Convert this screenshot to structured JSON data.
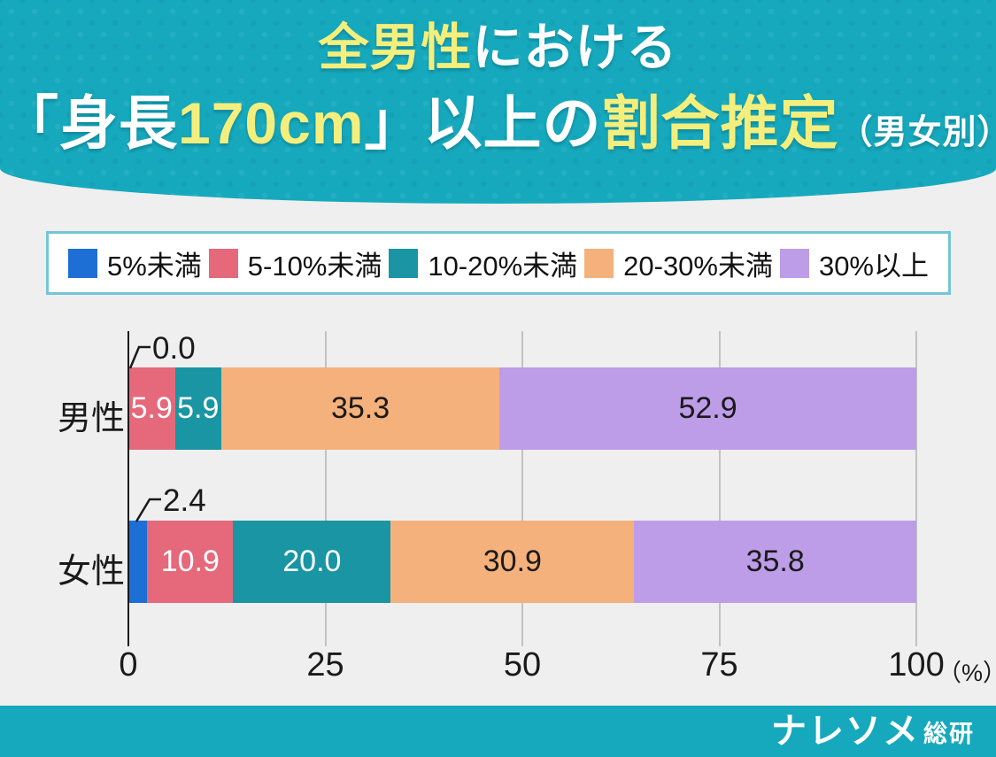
{
  "header": {
    "title_full": "全男性における「身長170cm」以上の割合推定（男女別）",
    "line1_segments": [
      {
        "text": "全男性",
        "color": "yellow"
      },
      {
        "text": "における",
        "color": "white"
      }
    ],
    "line2_segments": [
      {
        "text": "「身長",
        "color": "white"
      },
      {
        "text": "170cm",
        "color": "yellow"
      },
      {
        "text": "」以上の",
        "color": "white"
      },
      {
        "text": "割合推定",
        "color": "yellow"
      },
      {
        "text": "（男女別）",
        "color": "white",
        "small": true
      }
    ],
    "background_color": "#16A9BD",
    "accent_text_color": "#F4EF7C"
  },
  "chart_data": {
    "type": "bar",
    "orientation": "horizontal",
    "stacked": true,
    "categories": [
      "男性",
      "女性"
    ],
    "series": [
      {
        "name": "5%未満",
        "color": "#1D6FD6",
        "label_style": "white",
        "values": [
          0.0,
          2.4
        ]
      },
      {
        "name": "5-10%未満",
        "color": "#E5697B",
        "label_style": "white",
        "values": [
          5.9,
          10.9
        ]
      },
      {
        "name": "10-20%未満",
        "color": "#1995A3",
        "label_style": "white",
        "values": [
          5.9,
          20.0
        ]
      },
      {
        "name": "20-30%未満",
        "color": "#F5B17B",
        "label_style": "dark",
        "values": [
          35.3,
          30.9
        ]
      },
      {
        "name": "30%以上",
        "color": "#BD9CE8",
        "label_style": "dark",
        "values": [
          52.9,
          35.8
        ]
      }
    ],
    "annotations": [
      {
        "row": "男性",
        "label": "0.0"
      },
      {
        "row": "女性",
        "label": "2.4"
      }
    ],
    "xlim": [
      0,
      100
    ],
    "xticks": [
      0,
      25,
      50,
      75,
      100
    ],
    "x_unit": "（%）",
    "grid": true,
    "legend_position": "top",
    "gridline_color": "#C2C2C2",
    "axis_color": "#1a1a1a",
    "background_color": "#EFEFEF"
  },
  "footer": {
    "logo_main": "ナレソメ",
    "logo_sub": "総研",
    "background_color": "#16A9BD"
  }
}
